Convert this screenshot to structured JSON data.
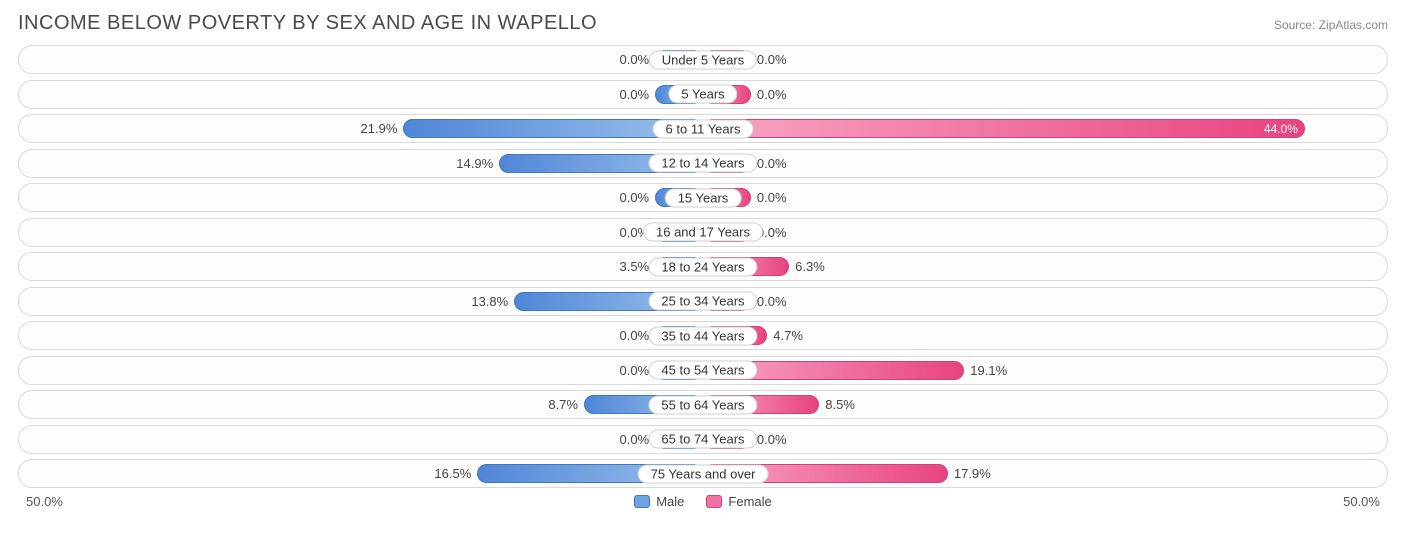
{
  "title": "INCOME BELOW POVERTY BY SEX AND AGE IN WAPELLO",
  "source": "Source: ZipAtlas.com",
  "axis": {
    "left": "50.0%",
    "right": "50.0%",
    "max": 50.0
  },
  "legend": {
    "male": {
      "label": "Male",
      "color": "#6fa3e0",
      "border": "#3f77c0"
    },
    "female": {
      "label": "Female",
      "color": "#f171a5",
      "border": "#d23f7d"
    }
  },
  "styling": {
    "min_bar_pct": 7.0,
    "row_border_color": "#d8d8d8",
    "row_bg": "#fdfdfd",
    "title_color": "#4a4a4a",
    "title_fontsize": 20,
    "label_fontsize": 13,
    "male_gradient": [
      "#9cc1ec",
      "#4f86d6"
    ],
    "female_gradient": [
      "#f8a6c5",
      "#e8437f"
    ]
  },
  "rows": [
    {
      "category": "Under 5 Years",
      "male": 0.0,
      "female": 0.0
    },
    {
      "category": "5 Years",
      "male": 0.0,
      "female": 0.0
    },
    {
      "category": "6 to 11 Years",
      "male": 21.9,
      "female": 44.0
    },
    {
      "category": "12 to 14 Years",
      "male": 14.9,
      "female": 0.0
    },
    {
      "category": "15 Years",
      "male": 0.0,
      "female": 0.0
    },
    {
      "category": "16 and 17 Years",
      "male": 0.0,
      "female": 0.0
    },
    {
      "category": "18 to 24 Years",
      "male": 3.5,
      "female": 6.3
    },
    {
      "category": "25 to 34 Years",
      "male": 13.8,
      "female": 0.0
    },
    {
      "category": "35 to 44 Years",
      "male": 0.0,
      "female": 4.7
    },
    {
      "category": "45 to 54 Years",
      "male": 0.0,
      "female": 19.1
    },
    {
      "category": "55 to 64 Years",
      "male": 8.7,
      "female": 8.5
    },
    {
      "category": "65 to 74 Years",
      "male": 0.0,
      "female": 0.0
    },
    {
      "category": "75 Years and over",
      "male": 16.5,
      "female": 17.9
    }
  ]
}
